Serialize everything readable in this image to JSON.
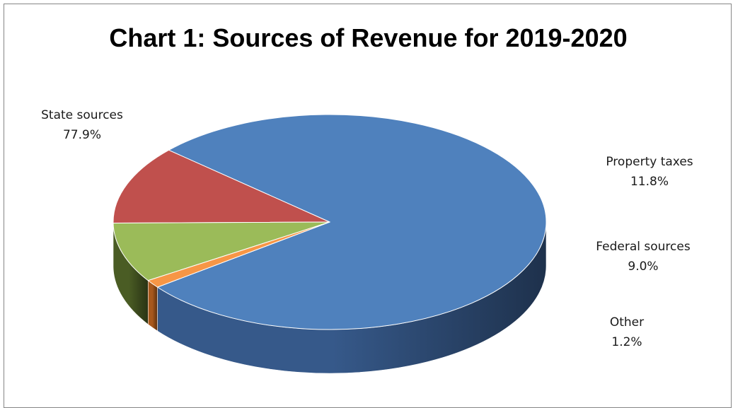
{
  "chart_data": {
    "type": "pie",
    "title": "Chart 1: Sources of Revenue for 2019-2020",
    "slices": [
      {
        "label": "State sources",
        "value": 77.9,
        "value_text": "77.9%",
        "color": "#4f81bd",
        "side_color": "#36598a"
      },
      {
        "label": "Property taxes",
        "value": 11.8,
        "value_text": "11.8%",
        "color": "#c0504d",
        "side_color": "#7a2220"
      },
      {
        "label": "Federal sources",
        "value": 9.0,
        "value_text": "9.0%",
        "color": "#9bbb59",
        "side_color": "#4a5c24"
      },
      {
        "label": "Other",
        "value": 1.2,
        "value_text": "1.2%",
        "color": "#f79646",
        "side_color": "#a8581c"
      }
    ],
    "legend": "none",
    "data_labels": "outside"
  }
}
